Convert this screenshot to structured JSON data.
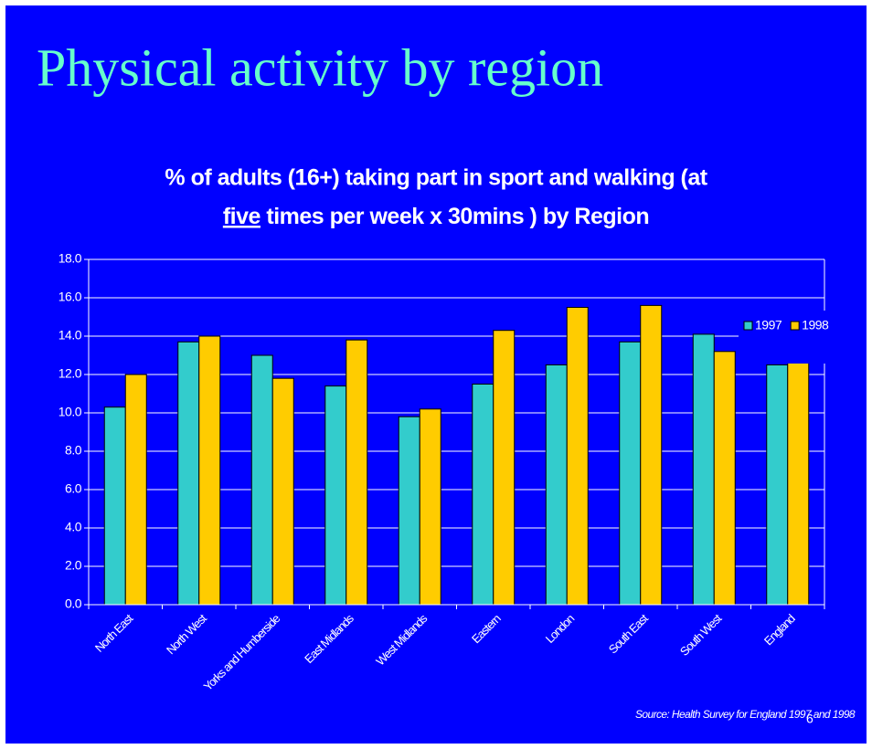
{
  "chart_data": {
    "type": "bar",
    "title": "Physical activity by region",
    "subtitle": [
      "% of adults (16+) taking part in sport and walking (at",
      "five",
      " times per week x 30mins ) by Region"
    ],
    "categories": [
      "North East",
      "North West",
      "Yorks and Humberside",
      "East Midlands",
      "West Midlands",
      "Eastern",
      "London",
      "South East",
      "South West",
      "England"
    ],
    "series": [
      {
        "name": "1997",
        "color": "#33cccc",
        "values": [
          10.3,
          13.7,
          13.0,
          11.4,
          9.8,
          11.5,
          12.5,
          13.7,
          14.1,
          12.5
        ]
      },
      {
        "name": "1998",
        "color": "#ffcc00",
        "values": [
          12.0,
          14.0,
          11.8,
          13.8,
          10.2,
          14.3,
          15.5,
          15.6,
          13.2,
          13.6
        ]
      }
    ],
    "ylim": [
      0,
      18
    ],
    "yticks": [
      {
        "value": 0,
        "label": "0.0"
      },
      {
        "value": 2,
        "label": "2.0"
      },
      {
        "value": 4,
        "label": "4.0"
      },
      {
        "value": 6,
        "label": "6.0"
      },
      {
        "value": 8,
        "label": "8.0"
      },
      {
        "value": 10,
        "label": "10.0"
      },
      {
        "value": 12,
        "label": "12.0"
      },
      {
        "value": 14,
        "label": "14.0"
      },
      {
        "value": 16,
        "label": "16.0"
      },
      {
        "value": 18,
        "label": "18.0"
      }
    ],
    "grid": true,
    "legend": "right",
    "source": "Source: Health Survey for England  1997 and 1998",
    "page_number": "6"
  }
}
